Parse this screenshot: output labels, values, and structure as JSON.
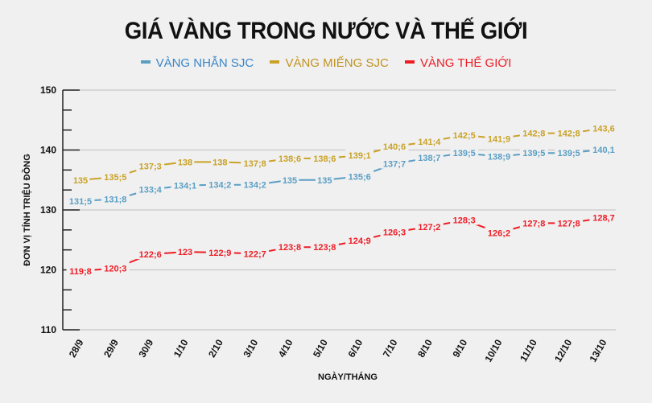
{
  "title": "GIÁ VÀNG TRONG NƯỚC VÀ THẾ GIỚI",
  "legend": [
    {
      "label": "VÀNG NHẪN SJC",
      "color": "#5a9ec4",
      "text_color": "#3a86c8"
    },
    {
      "label": "VÀNG MIẾNG SJC",
      "color": "#c9a227",
      "text_color": "#c09322"
    },
    {
      "label": "VÀNG THẾ GIỚI",
      "color": "#ee1c25",
      "text_color": "#ee1c25"
    }
  ],
  "chart_data": {
    "type": "line",
    "title": "GIÁ VÀNG TRONG NƯỚC VÀ THẾ GIỚI",
    "xlabel": "NGÀY/THÁNG",
    "ylabel": "ĐƠN VỊ TÍNH TRIỆU ĐỒNG",
    "ylim": [
      110,
      150
    ],
    "yticks": [
      110,
      120,
      130,
      140,
      150
    ],
    "grid": true,
    "legend_position": "top",
    "categories": [
      "28/9",
      "29/9",
      "30/9",
      "1/10",
      "2/10",
      "3/10",
      "4/10",
      "5/10",
      "6/10",
      "7/10",
      "8/10",
      "9/10",
      "10/10",
      "11/10",
      "12/10",
      "13/10"
    ],
    "series": [
      {
        "name": "VÀNG NHẪN SJC",
        "color": "#5a9ec4",
        "values": [
          131.5,
          131.8,
          133.4,
          134.1,
          134.2,
          134.2,
          135,
          135,
          135.6,
          137.7,
          138.7,
          139.5,
          138.9,
          139.5,
          139.5,
          140.1
        ],
        "labels": [
          "131;5",
          "131;8",
          "133;4",
          "134;1",
          "134;2",
          "134;2",
          "135",
          "135",
          "135;6",
          "137;7",
          "138;7",
          "139;5",
          "138;9",
          "139;5",
          "139;5",
          "140,1"
        ]
      },
      {
        "name": "VÀNG MIẾNG SJC",
        "color": "#c9a227",
        "values": [
          135,
          135.5,
          137.3,
          138,
          138,
          137.8,
          138.6,
          138.6,
          139.1,
          140.6,
          141.4,
          142.5,
          141.9,
          142.8,
          142.8,
          143.6
        ],
        "labels": [
          "135",
          "135;5",
          "137;3",
          "138",
          "138",
          "137;8",
          "138;6",
          "138;6",
          "139;1",
          "140;6",
          "141;4",
          "142;5",
          "141;9",
          "142;8",
          "142;8",
          "143,6"
        ]
      },
      {
        "name": "VÀNG THẾ GIỚI",
        "color": "#ee1c25",
        "values": [
          119.8,
          120.3,
          122.6,
          123,
          122.9,
          122.7,
          123.8,
          123.8,
          124.9,
          126.3,
          127.2,
          128.3,
          126.2,
          127.8,
          127.8,
          128.7
        ],
        "labels": [
          "119;8",
          "120;3",
          "122;6",
          "123",
          "122;9",
          "122;7",
          "123;8",
          "123;8",
          "124;9",
          "126;3",
          "127;2",
          "128;3",
          "126;2",
          "127;8",
          "127;8",
          "128,7"
        ]
      }
    ]
  }
}
